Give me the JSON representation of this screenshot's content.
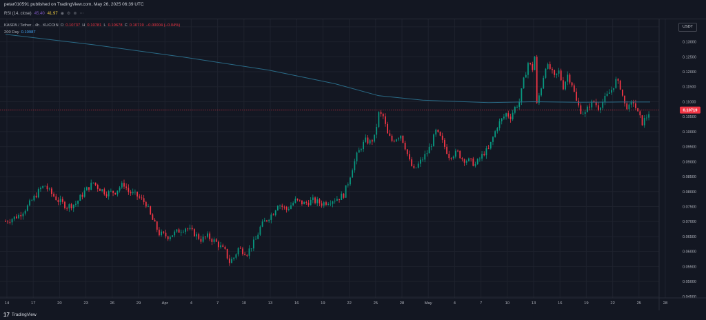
{
  "header": {
    "publisher_line": "petar010591 published on TradingView.com, May 26, 2025 06:39 UTC"
  },
  "indicator_bar": {
    "label": "RSI (14, close)",
    "value_1": "45.40",
    "value_2": "41.97",
    "icons": [
      "eye-icon",
      "settings-icon",
      "delete-icon",
      "more-icon"
    ]
  },
  "legend": {
    "symbol": "KASPA / Tether · 4h · KUCOIN",
    "o_label": "O",
    "o_value": "0.10737",
    "h_label": "H",
    "h_value": "0.10781",
    "l_label": "L",
    "l_value": "0.10678",
    "c_label": "C",
    "c_value": "0.10719",
    "change": "−0.00004 (−0.04%)",
    "ma_label": "200 Day",
    "ma_value": "0.10987"
  },
  "currency_button": "USDT",
  "footer": {
    "brand": "TradingView",
    "logo": "17"
  },
  "colors": {
    "background": "#131722",
    "grid": "#1e222d",
    "up_candle": "#089981",
    "down_candle": "#f23645",
    "ma_line": "#2a6b87",
    "price_line": "#f23645",
    "axis_text": "#b2b5be"
  },
  "chart_data": {
    "type": "candlestick",
    "symbol": "KASPA / Tether",
    "timeframe": "4h",
    "ylim": [
      0.0445,
      0.1375
    ],
    "y_ticks": [
      "0.13500",
      "0.13000",
      "0.12500",
      "0.12000",
      "0.11500",
      "0.11000",
      "0.10500",
      "0.10000",
      "0.09500",
      "0.09000",
      "0.08500",
      "0.08000",
      "0.07500",
      "0.07000",
      "0.06500",
      "0.06000",
      "0.05500",
      "0.05000",
      "0.04500"
    ],
    "x_ticks": [
      "14",
      "17",
      "20",
      "23",
      "26",
      "29",
      "Apr",
      "4",
      "7",
      "10",
      "13",
      "16",
      "19",
      "22",
      "25",
      "28",
      "May",
      "4",
      "7",
      "10",
      "13",
      "16",
      "19",
      "22",
      "25",
      "28"
    ],
    "current_price": 0.10719,
    "current_price_label": "0.10719",
    "price_path": [
      [
        0,
        0.07
      ],
      [
        3,
        0.072
      ],
      [
        5,
        0.075
      ],
      [
        7,
        0.079
      ],
      [
        8,
        0.081
      ],
      [
        9,
        0.082
      ],
      [
        10,
        0.08
      ],
      [
        12,
        0.077
      ],
      [
        14,
        0.075
      ],
      [
        16,
        0.076
      ],
      [
        18,
        0.08
      ],
      [
        20,
        0.083
      ],
      [
        21,
        0.0815
      ],
      [
        23,
        0.0795
      ],
      [
        25,
        0.08
      ],
      [
        26,
        0.0815
      ],
      [
        27,
        0.0825
      ],
      [
        28,
        0.08
      ],
      [
        30,
        0.0785
      ],
      [
        32,
        0.076
      ],
      [
        33,
        0.072
      ],
      [
        35,
        0.066
      ],
      [
        37,
        0.065
      ],
      [
        39,
        0.0665
      ],
      [
        41,
        0.068
      ],
      [
        43,
        0.066
      ],
      [
        44.5,
        0.064
      ],
      [
        46,
        0.065
      ],
      [
        48,
        0.063
      ],
      [
        50,
        0.06
      ],
      [
        51,
        0.0565
      ],
      [
        52,
        0.058
      ],
      [
        53,
        0.061
      ],
      [
        55,
        0.0595
      ],
      [
        57,
        0.064
      ],
      [
        58,
        0.068
      ],
      [
        59,
        0.07
      ],
      [
        61,
        0.073
      ],
      [
        62,
        0.076
      ],
      [
        64,
        0.074
      ],
      [
        66,
        0.077
      ],
      [
        68,
        0.076
      ],
      [
        70,
        0.077
      ],
      [
        72,
        0.076
      ],
      [
        74,
        0.077
      ],
      [
        76,
        0.078
      ],
      [
        77,
        0.079
      ],
      [
        78,
        0.083
      ],
      [
        79,
        0.088
      ],
      [
        80,
        0.092
      ],
      [
        81,
        0.095
      ],
      [
        82,
        0.097
      ],
      [
        83,
        0.0965
      ],
      [
        84,
        0.098
      ],
      [
        85,
        0.106
      ],
      [
        86,
        0.105
      ],
      [
        87,
        0.099
      ],
      [
        88,
        0.097
      ],
      [
        89,
        0.098
      ],
      [
        90,
        0.099
      ],
      [
        91,
        0.095
      ],
      [
        92,
        0.09
      ],
      [
        93,
        0.087
      ],
      [
        94,
        0.089
      ],
      [
        95,
        0.091
      ],
      [
        96,
        0.093
      ],
      [
        97,
        0.096
      ],
      [
        98,
        0.1
      ],
      [
        99,
        0.098
      ],
      [
        100,
        0.095
      ],
      [
        101,
        0.092
      ],
      [
        103,
        0.093
      ],
      [
        104,
        0.091
      ],
      [
        106,
        0.09
      ],
      [
        107,
        0.089
      ],
      [
        108,
        0.091
      ],
      [
        109,
        0.093
      ],
      [
        110,
        0.094
      ],
      [
        111,
        0.098
      ],
      [
        112,
        0.102
      ],
      [
        113,
        0.104
      ],
      [
        114,
        0.106
      ],
      [
        115,
        0.105
      ],
      [
        116,
        0.108
      ],
      [
        117,
        0.11
      ],
      [
        118,
        0.117
      ],
      [
        119,
        0.123
      ],
      [
        120,
        0.121
      ],
      [
        120.5,
        0.125
      ],
      [
        121,
        0.109
      ],
      [
        122,
        0.115
      ],
      [
        123,
        0.122
      ],
      [
        124,
        0.121
      ],
      [
        125,
        0.118
      ],
      [
        126,
        0.12
      ],
      [
        127,
        0.115
      ],
      [
        128,
        0.119
      ],
      [
        129,
        0.116
      ],
      [
        130,
        0.11
      ],
      [
        131,
        0.107
      ],
      [
        132,
        0.106
      ],
      [
        133,
        0.109
      ],
      [
        134,
        0.11
      ],
      [
        135,
        0.108
      ],
      [
        136,
        0.11
      ],
      [
        137,
        0.112
      ],
      [
        138,
        0.114
      ],
      [
        139,
        0.117
      ],
      [
        140,
        0.115
      ],
      [
        141,
        0.109
      ],
      [
        142,
        0.108
      ],
      [
        143,
        0.11
      ],
      [
        144,
        0.106
      ],
      [
        145,
        0.103
      ],
      [
        146,
        0.105
      ],
      [
        146.8,
        0.1072
      ]
    ],
    "ma_path": [
      [
        0,
        0.1325
      ],
      [
        20,
        0.129
      ],
      [
        40,
        0.125
      ],
      [
        60,
        0.1205
      ],
      [
        75,
        0.116
      ],
      [
        85,
        0.112
      ],
      [
        95,
        0.1105
      ],
      [
        110,
        0.1097
      ],
      [
        120,
        0.11
      ],
      [
        130,
        0.1098
      ],
      [
        140,
        0.1099
      ],
      [
        146.8,
        0.1099
      ]
    ]
  }
}
